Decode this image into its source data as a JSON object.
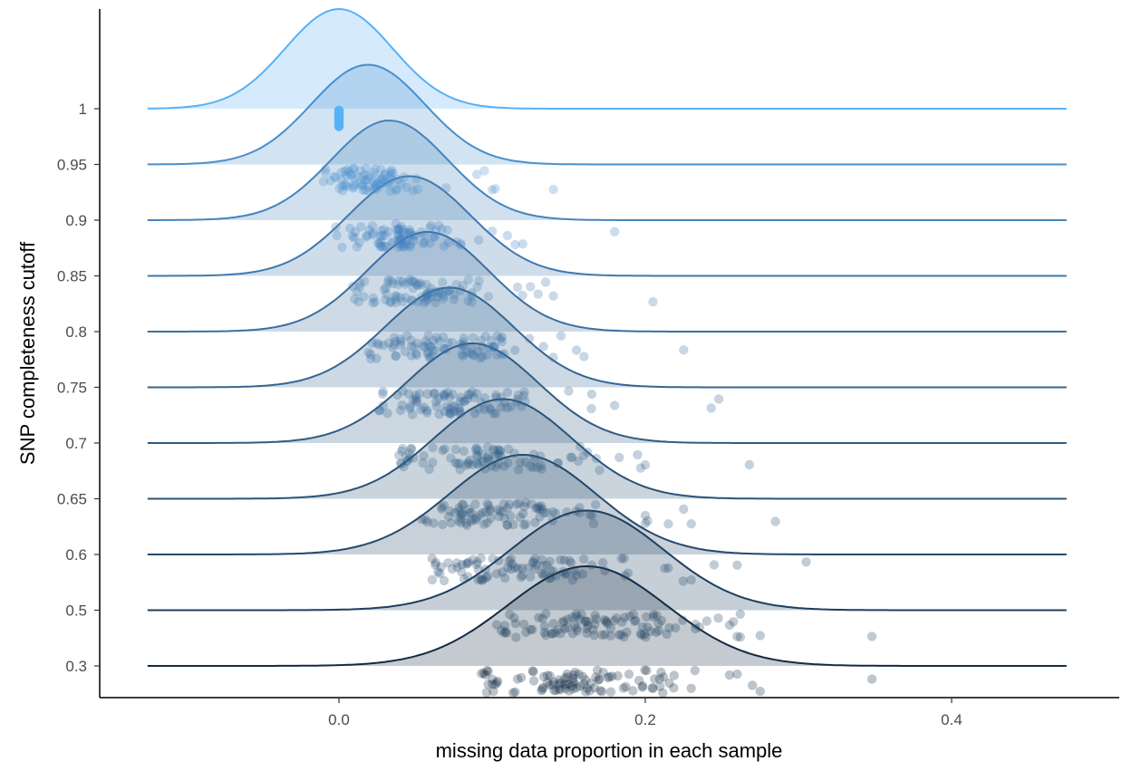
{
  "chart_data": {
    "type": "ridgeline",
    "xlabel": "missing data proportion in each sample",
    "ylabel": "SNP completeness cutoff",
    "xlim": [
      -0.125,
      0.475
    ],
    "x_ticks": [
      0.0,
      0.2,
      0.4
    ],
    "x_tick_labels": [
      "0.0",
      "0.2",
      "0.4"
    ],
    "grid": false,
    "legend": "none",
    "series": [
      {
        "cutoff": "0.3",
        "peak_x": 0.162,
        "sd": 0.052,
        "color": "#132b43",
        "points": {
          "n": 95,
          "center": 0.16,
          "spread": 0.04,
          "outliers": [
            0.205,
            0.23,
            0.255,
            0.26,
            0.27,
            0.275,
            0.348
          ]
        }
      },
      {
        "cutoff": "0.5",
        "peak_x": 0.162,
        "sd": 0.05,
        "color": "#1d3f5e",
        "points": {
          "n": 95,
          "center": 0.165,
          "spread": 0.035,
          "outliers": [
            0.103,
            0.255,
            0.262,
            0.26,
            0.275,
            0.262,
            0.348
          ]
        }
      },
      {
        "cutoff": "0.6",
        "peak_x": 0.12,
        "sd": 0.048,
        "color": "#25496b",
        "points": {
          "n": 85,
          "center": 0.12,
          "spread": 0.035,
          "outliers": [
            0.08,
            0.215,
            0.23,
            0.245,
            0.26,
            0.305
          ]
        }
      },
      {
        "cutoff": "0.65",
        "peak_x": 0.107,
        "sd": 0.045,
        "color": "#2a5377",
        "points": {
          "n": 85,
          "center": 0.105,
          "spread": 0.03,
          "outliers": [
            0.2,
            0.2,
            0.215,
            0.225,
            0.23,
            0.285
          ]
        }
      },
      {
        "cutoff": "0.7",
        "peak_x": 0.087,
        "sd": 0.043,
        "color": "#2f5c85",
        "points": {
          "n": 85,
          "center": 0.09,
          "spread": 0.03,
          "outliers": [
            0.168,
            0.183,
            0.195,
            0.197,
            0.2,
            0.268
          ]
        }
      },
      {
        "cutoff": "0.75",
        "peak_x": 0.072,
        "sd": 0.042,
        "color": "#346592",
        "points": {
          "n": 85,
          "center": 0.075,
          "spread": 0.03,
          "outliers": [
            0.15,
            0.165,
            0.18,
            0.243,
            0.248
          ]
        }
      },
      {
        "cutoff": "0.8",
        "peak_x": 0.058,
        "sd": 0.04,
        "color": "#3a6fa0",
        "points": {
          "n": 85,
          "center": 0.065,
          "spread": 0.028,
          "outliers": [
            0.14,
            0.145,
            0.155,
            0.16,
            0.225
          ]
        }
      },
      {
        "cutoff": "0.85",
        "peak_x": 0.046,
        "sd": 0.04,
        "color": "#3f79ae",
        "points": {
          "n": 85,
          "center": 0.05,
          "spread": 0.025,
          "outliers": [
            0.125,
            0.13,
            0.135,
            0.14,
            0.205
          ]
        }
      },
      {
        "cutoff": "0.9",
        "peak_x": 0.033,
        "sd": 0.038,
        "color": "#4583bd",
        "points": {
          "n": 85,
          "center": 0.035,
          "spread": 0.022,
          "outliers": [
            0.1,
            0.11,
            0.115,
            0.12,
            0.18
          ]
        }
      },
      {
        "cutoff": "0.95",
        "peak_x": 0.019,
        "sd": 0.037,
        "color": "#4b8ecb",
        "points": {
          "n": 80,
          "center": 0.02,
          "spread": 0.018,
          "outliers": [
            0.07,
            0.09,
            0.095,
            0.1,
            0.102,
            0.14
          ]
        }
      },
      {
        "cutoff": "1",
        "peak_x": 0.0,
        "sd": 0.035,
        "color": "#56b1f7",
        "points": {
          "n": 20,
          "center": 0.0,
          "spread": 0.0,
          "outliers": []
        }
      }
    ]
  }
}
